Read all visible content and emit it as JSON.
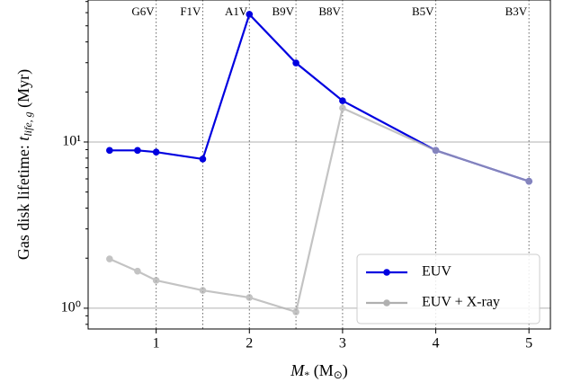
{
  "chart_data": {
    "type": "line",
    "x_label_parts": [
      "M",
      "*",
      " (M",
      "⊙",
      ")"
    ],
    "y_label_parts": [
      "Gas disk lifetime: ",
      "t",
      "life, g",
      " (Myr)"
    ],
    "x": [
      0.5,
      0.8,
      1.0,
      1.5,
      2.0,
      2.5,
      3.0,
      4.0,
      5.0
    ],
    "series": [
      {
        "name": "EUV",
        "color": "#0000e0",
        "values": [
          8.9,
          8.9,
          8.7,
          7.9,
          58.6,
          29.9,
          17.7,
          8.9,
          5.8
        ]
      },
      {
        "name": "EUV + X-ray",
        "color": "#b0b0b0",
        "values": [
          1.98,
          1.67,
          1.47,
          1.28,
          1.16,
          0.95,
          16.0,
          8.9,
          5.8
        ]
      }
    ],
    "xlim": [
      0.27,
      5.23
    ],
    "ylim": [
      0.75,
      71.5
    ],
    "log_y": true,
    "xticks": [
      1,
      2,
      3,
      4,
      5
    ],
    "yticks": [
      {
        "value": 1,
        "label": "10⁰"
      },
      {
        "value": 10,
        "label": "10¹"
      }
    ],
    "yminorticks": [
      0.8,
      0.9,
      2,
      3,
      4,
      5,
      6,
      7,
      8,
      9,
      20,
      30,
      40,
      50,
      60,
      70
    ],
    "grid": true,
    "legend": "lower right",
    "annotations": [
      {
        "x": 1.0,
        "label": "G6V"
      },
      {
        "x": 1.5,
        "label": "F1V"
      },
      {
        "x": 2.0,
        "label": "A1V"
      },
      {
        "x": 2.5,
        "label": "B9V"
      },
      {
        "x": 3.0,
        "label": "B8V"
      },
      {
        "x": 4.0,
        "label": "B5V"
      },
      {
        "x": 5.0,
        "label": "B3V"
      }
    ]
  }
}
